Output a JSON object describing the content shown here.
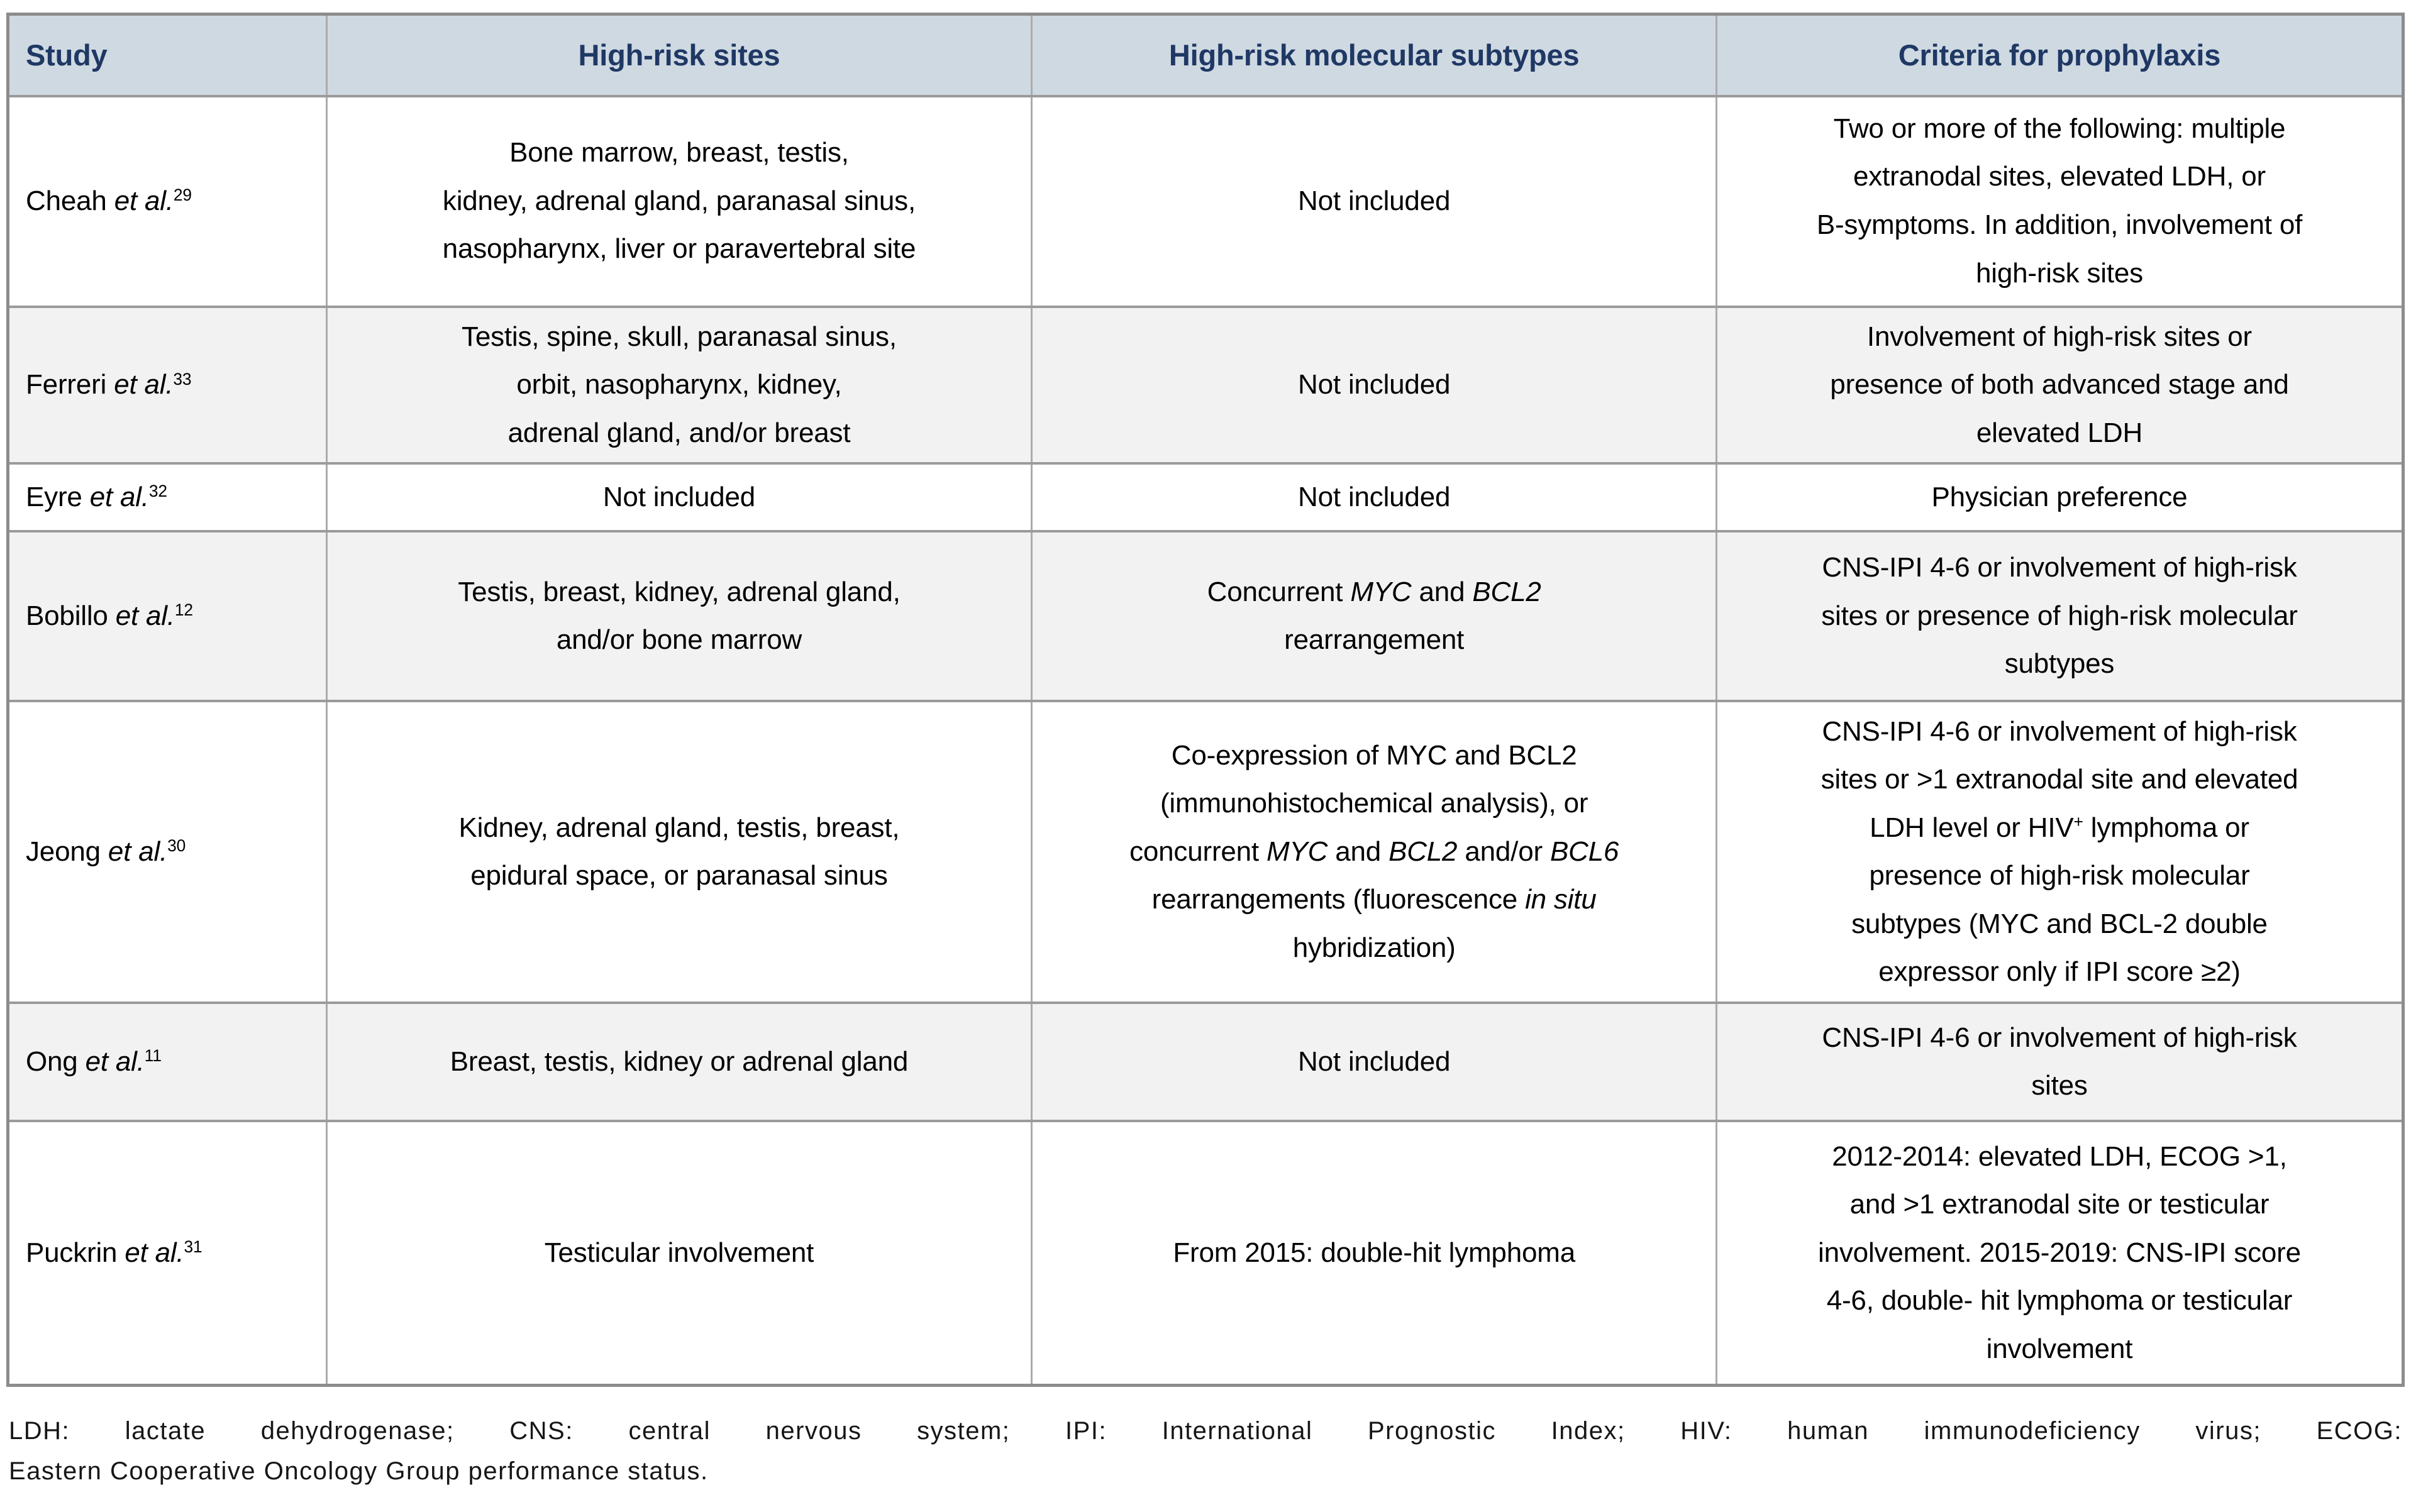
{
  "colors": {
    "header_bg": "#cfd9e2",
    "header_text": "#1f3864",
    "row_bg": "#ffffff",
    "row_shaded_bg": "#f2f2f2",
    "border_outer": "#8c8c8c",
    "border_inner": "#ababab",
    "border_row": "#9b9b9b",
    "text": "#000000"
  },
  "header": {
    "columns": [
      "Study",
      "High-risk sites",
      "High-risk molecular subtypes",
      "Criteria for prophylaxis"
    ]
  },
  "rows": [
    {
      "study": [
        {
          "t": "Cheah "
        },
        {
          "t": "et al.",
          "i": true
        },
        {
          "t": "29",
          "sup": true
        }
      ],
      "sites": [
        {
          "t": "Bone marrow, breast, testis,\nkidney, adrenal gland, paranasal sinus,\nnasopharynx, liver or paravertebral site"
        }
      ],
      "subtypes": [
        {
          "t": "Not included"
        }
      ],
      "criteria": [
        {
          "t": "Two or more of the following: multiple\nextranodal sites, elevated LDH, or\nB-symptoms. In addition, involvement of\nhigh-risk sites"
        }
      ]
    },
    {
      "study": [
        {
          "t": "Ferreri "
        },
        {
          "t": "et al.",
          "i": true
        },
        {
          "t": "33",
          "sup": true
        }
      ],
      "sites": [
        {
          "t": "Testis, spine, skull, paranasal sinus,\norbit, nasopharynx, kidney,\nadrenal gland, and/or breast"
        }
      ],
      "subtypes": [
        {
          "t": "Not included"
        }
      ],
      "criteria": [
        {
          "t": "Involvement of high-risk sites or\npresence of both advanced stage and\nelevated LDH"
        }
      ]
    },
    {
      "study": [
        {
          "t": "Eyre "
        },
        {
          "t": "et al.",
          "i": true
        },
        {
          "t": "32",
          "sup": true
        }
      ],
      "sites": [
        {
          "t": "Not included"
        }
      ],
      "subtypes": [
        {
          "t": "Not included"
        }
      ],
      "criteria": [
        {
          "t": "Physician preference"
        }
      ]
    },
    {
      "study": [
        {
          "t": "Bobillo "
        },
        {
          "t": "et al.",
          "i": true
        },
        {
          "t": "12",
          "sup": true
        }
      ],
      "sites": [
        {
          "t": "Testis, breast, kidney, adrenal gland,\nand/or bone marrow"
        }
      ],
      "subtypes": [
        {
          "t": "Concurrent "
        },
        {
          "t": "MYC",
          "i": true
        },
        {
          "t": " and "
        },
        {
          "t": "BCL2",
          "i": true
        },
        {
          "t": "\nrearrangement"
        }
      ],
      "criteria": [
        {
          "t": "CNS-IPI 4-6 or involvement of high-risk\nsites or presence of high-risk molecular\nsubtypes"
        }
      ]
    },
    {
      "study": [
        {
          "t": "Jeong "
        },
        {
          "t": "et al.",
          "i": true
        },
        {
          "t": "30",
          "sup": true
        }
      ],
      "sites": [
        {
          "t": "Kidney, adrenal gland, testis, breast,\nepidural space, or paranasal sinus"
        }
      ],
      "subtypes": [
        {
          "t": "Co-expression of MYC and BCL2\n(immunohistochemical analysis), or\nconcurrent "
        },
        {
          "t": "MYC",
          "i": true
        },
        {
          "t": " and "
        },
        {
          "t": "BCL2",
          "i": true
        },
        {
          "t": " and/or "
        },
        {
          "t": "BCL6",
          "i": true
        },
        {
          "t": "\nrearrangements (fluorescence "
        },
        {
          "t": "in situ",
          "i": true
        },
        {
          "t": "\nhybridization)"
        }
      ],
      "criteria": [
        {
          "t": "CNS-IPI 4-6 or involvement of high-risk\nsites or >1 extranodal site and elevated\nLDH level or HIV"
        },
        {
          "t": "+",
          "sup": true
        },
        {
          "t": " lymphoma or\npresence of high-risk molecular\nsubtypes (MYC and BCL-2 double\nexpressor only if IPI score ≥2)"
        }
      ]
    },
    {
      "study": [
        {
          "t": "Ong "
        },
        {
          "t": "et al.",
          "i": true
        },
        {
          "t": "11",
          "sup": true
        }
      ],
      "sites": [
        {
          "t": "Breast, testis, kidney or adrenal gland"
        }
      ],
      "subtypes": [
        {
          "t": "Not included"
        }
      ],
      "criteria": [
        {
          "t": "CNS-IPI 4-6 or involvement of high-risk\nsites"
        }
      ]
    },
    {
      "study": [
        {
          "t": "Puckrin "
        },
        {
          "t": "et al.",
          "i": true
        },
        {
          "t": "31",
          "sup": true
        }
      ],
      "sites": [
        {
          "t": "Testicular involvement"
        }
      ],
      "subtypes": [
        {
          "t": "From 2015: double-hit lymphoma"
        }
      ],
      "criteria": [
        {
          "t": "2012-2014: elevated LDH, ECOG >1,\nand >1 extranodal site or testicular\ninvolvement. 2015-2019: CNS-IPI score\n4-6, double- hit lymphoma or testicular\ninvolvement"
        }
      ]
    }
  ],
  "footnote": {
    "line1": "LDH: lactate dehydrogenase; CNS: central nervous system; IPI: International Prognostic Index; HIV: human immunodeficiency virus; ECOG:",
    "line2": "Eastern Cooperative Oncology Group performance status."
  }
}
